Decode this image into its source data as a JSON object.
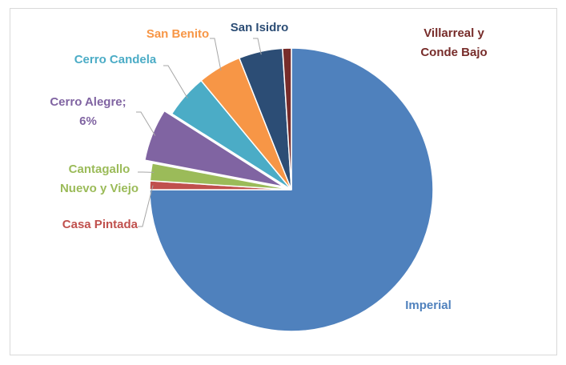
{
  "chart_data": {
    "type": "pie",
    "categories": [
      "Imperial",
      "Casa Pintada",
      "Cantagallo Nuevo y Viejo",
      "Cerro Alegre",
      "Cerro Candela",
      "San Benito",
      "San Isidro",
      "Villarreal y Conde Bajo"
    ],
    "values": [
      75,
      1,
      2,
      6,
      5,
      5,
      5,
      1
    ],
    "value_labels": [
      null,
      null,
      null,
      "6%",
      null,
      null,
      null,
      null
    ],
    "label_separator": ";",
    "colors": [
      "#4f81bd",
      "#c0504d",
      "#9bbb59",
      "#8064a2",
      "#4bacc6",
      "#f79646",
      "#2c4d75",
      "#772c2a"
    ],
    "label_colors": [
      "#4f81bd",
      "#c0504d",
      "#9bbb59",
      "#8064a2",
      "#4bacc6",
      "#f79646",
      "#2c4d75",
      "#772c2a"
    ],
    "exploded": [
      3
    ]
  }
}
